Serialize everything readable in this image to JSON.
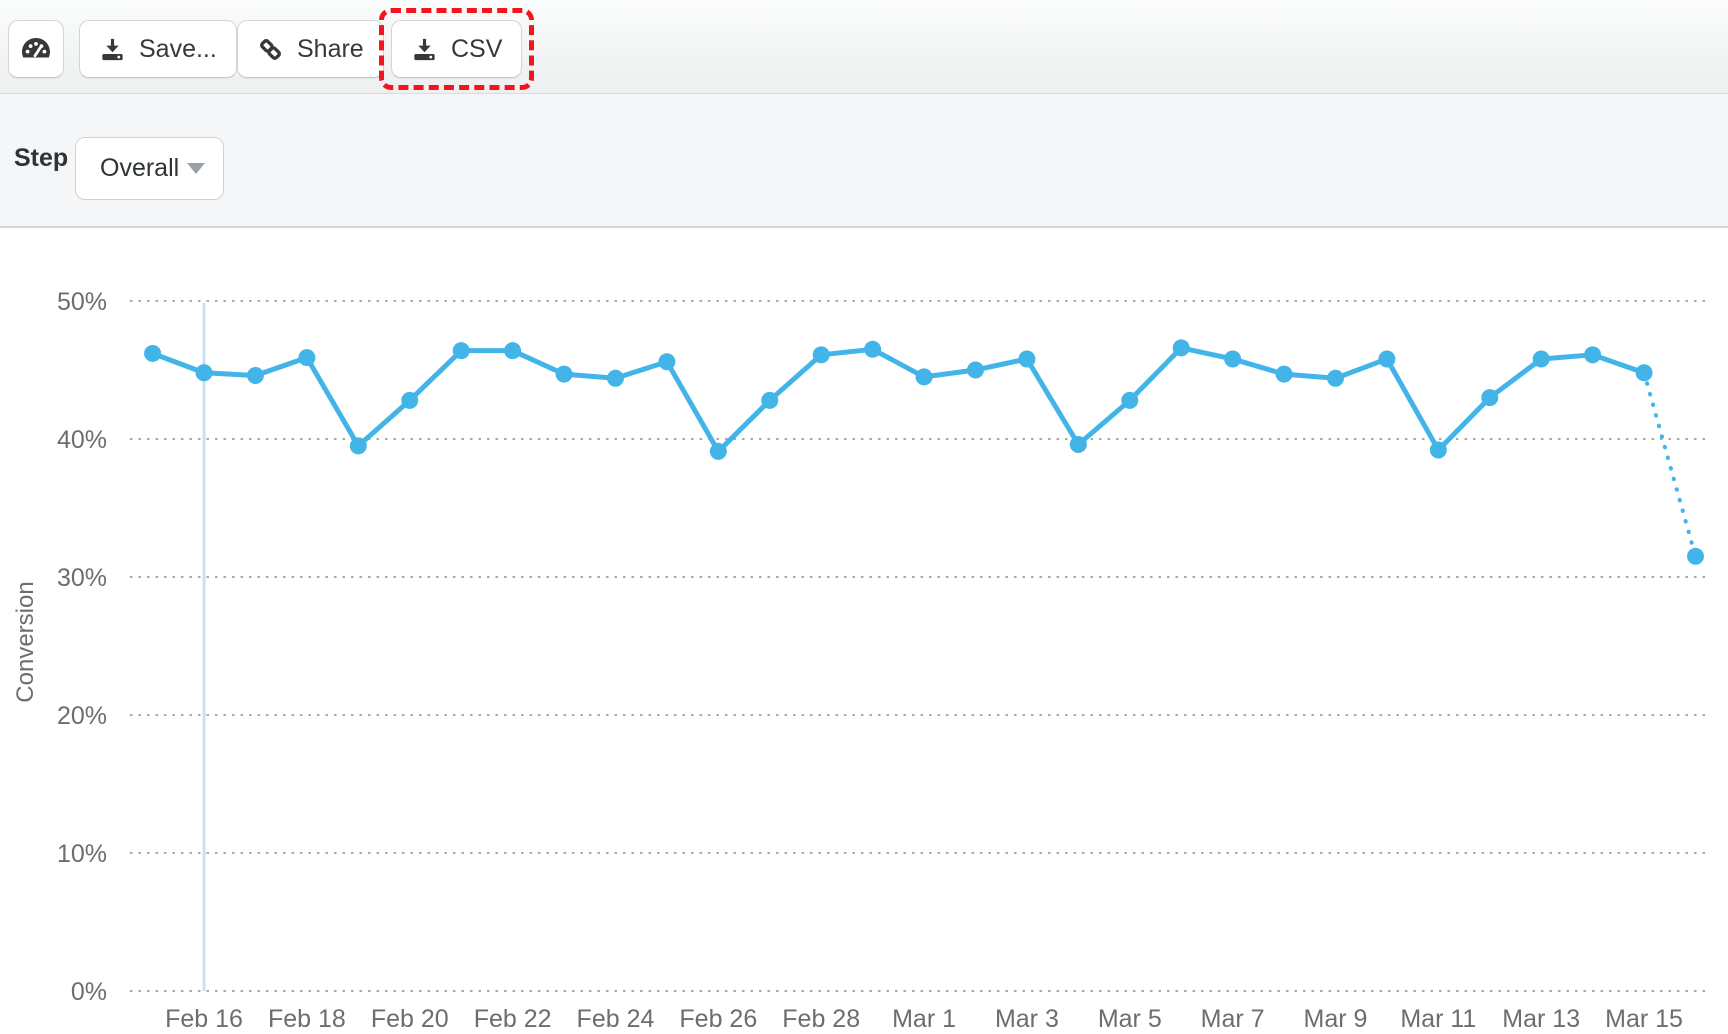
{
  "toolbar": {
    "dashboard_button": {
      "icon": "gauge-icon"
    },
    "save_label": "Save...",
    "share_label": "Share",
    "csv_label": "CSV",
    "csv_highlight_color": "#f3141e"
  },
  "controls": {
    "step_label": "Step",
    "step_value": "Overall"
  },
  "chart_data": {
    "type": "line",
    "title": "",
    "xlabel": "",
    "ylabel": "Conversion",
    "ylim": [
      0,
      50
    ],
    "grid": "dotted-horizontal",
    "legend": "none",
    "line_color": "#42b4e8",
    "highlight_line_color": "#cbdff2",
    "axis_text_color": "#6b6e71",
    "x": [
      "Feb 15",
      "Feb 16",
      "Feb 17",
      "Feb 18",
      "Feb 19",
      "Feb 20",
      "Feb 21",
      "Feb 22",
      "Feb 23",
      "Feb 24",
      "Feb 25",
      "Feb 26",
      "Feb 27",
      "Feb 28",
      "Feb 29",
      "Mar 1",
      "Mar 2",
      "Mar 3",
      "Mar 4",
      "Mar 5",
      "Mar 6",
      "Mar 7",
      "Mar 8",
      "Mar 9",
      "Mar 10",
      "Mar 11",
      "Mar 12",
      "Mar 13",
      "Mar 14",
      "Mar 15",
      "Mar 16"
    ],
    "values": [
      46.2,
      44.8,
      44.6,
      45.9,
      39.5,
      42.8,
      46.4,
      46.4,
      44.7,
      44.4,
      45.6,
      39.1,
      42.8,
      46.1,
      46.5,
      44.5,
      45.0,
      45.8,
      39.6,
      42.8,
      46.6,
      45.8,
      44.7,
      44.4,
      45.8,
      39.2,
      43.0,
      45.8,
      46.1,
      44.8,
      31.5
    ],
    "projected_last_point": true,
    "highlighted_x": "Feb 16",
    "x_tick_labels": [
      "Feb 16",
      "Feb 18",
      "Feb 20",
      "Feb 22",
      "Feb 24",
      "Feb 26",
      "Feb 28",
      "Mar 1",
      "Mar 3",
      "Mar 5",
      "Mar 7",
      "Mar 9",
      "Mar 11",
      "Mar 13",
      "Mar 15"
    ],
    "y_tick_labels": [
      "0%",
      "10%",
      "20%",
      "30%",
      "40%",
      "50%"
    ],
    "y_tick_values": [
      0,
      10,
      20,
      30,
      40,
      50
    ]
  }
}
